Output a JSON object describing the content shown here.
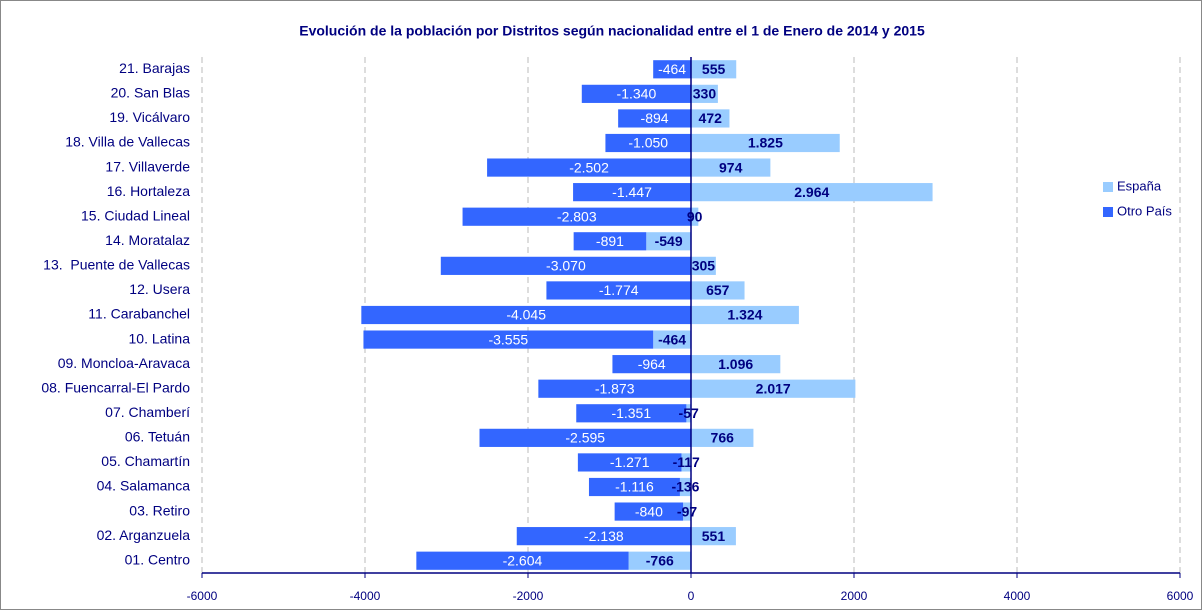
{
  "chart_data": {
    "type": "stacked-barh",
    "title": "Evolución de la población por Distritos según nacionalidad entre el 1 de Enero de 2014 y 2015",
    "categories": [
      "21. Barajas",
      "20. San Blas",
      "19. Vicálvaro",
      "18. Villa de Vallecas",
      "17. Villaverde",
      "16. Hortaleza",
      "15. Ciudad Lineal",
      "14. Moratalaz",
      "13.  Puente de Vallecas",
      "12. Usera",
      "11. Carabanchel",
      "10. Latina",
      "09. Moncloa-Aravaca",
      "08. Fuencarral-El Pardo",
      "07. Chamberí",
      "06. Tetuán",
      "05. Chamartín",
      "04. Salamanca",
      "03. Retiro",
      "02. Arganzuela",
      "01. Centro"
    ],
    "series": [
      {
        "name": "España",
        "color": "#99ccff",
        "label_color": "#000080",
        "values": [
          555,
          330,
          472,
          1825,
          974,
          2964,
          90,
          -549,
          305,
          657,
          1324,
          -464,
          1096,
          2017,
          -57,
          766,
          -117,
          -136,
          -97,
          551,
          -766
        ],
        "value_labels": [
          "555",
          "330",
          "472",
          "1.825",
          "974",
          "2.964",
          "90",
          "-549",
          "305",
          "657",
          "1.324",
          "-464",
          "1.096",
          "2.017",
          "-57",
          "766",
          "-117",
          "-136",
          "-97",
          "551",
          "-766"
        ]
      },
      {
        "name": "Otro País",
        "color": "#3366ff",
        "label_color": "#ffffff",
        "values": [
          -464,
          -1340,
          -894,
          -1050,
          -2502,
          -1447,
          -2803,
          -891,
          -3070,
          -1774,
          -4045,
          -3555,
          -964,
          -1873,
          -1351,
          -2595,
          -1271,
          -1116,
          -840,
          -2138,
          -2604
        ],
        "value_labels": [
          "-464",
          "-1.340",
          "-894",
          "-1.050",
          "-2.502",
          "-1.447",
          "-2.803",
          "-891",
          "-3.070",
          "-1.774",
          "-4.045",
          "-3.555",
          "-964",
          "-1.873",
          "-1.351",
          "-2.595",
          "-1.271",
          "-1.116",
          "-840",
          "-2.138",
          "-2.604"
        ]
      }
    ],
    "xlim": [
      -6000,
      6000
    ],
    "xticks": [
      -6000,
      -4000,
      -2000,
      0,
      2000,
      4000,
      6000
    ],
    "grid": true,
    "legend": "right"
  }
}
